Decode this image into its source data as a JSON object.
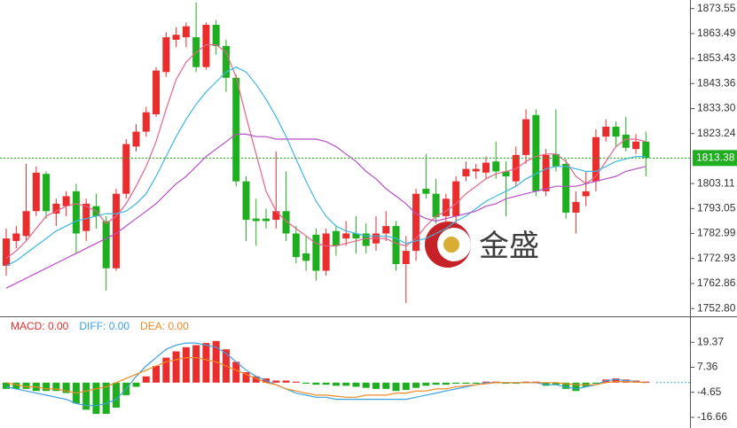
{
  "chart_data": [
    {
      "type": "candlestick",
      "up_color": "#eb2c2c",
      "down_color": "#1fae1f",
      "open": [
        1770,
        1780,
        1782,
        1792,
        1807,
        1791,
        1794,
        1800,
        1784,
        1794,
        1788,
        1769,
        1799,
        1818,
        1824,
        1831,
        1848,
        1861,
        1862,
        1862,
        1850,
        1867,
        1858.5,
        1845.7,
        1804,
        1789,
        1789,
        1788.5,
        1792,
        1783,
        1775,
        1782.5,
        1768,
        1784,
        1781,
        1783,
        1783,
        1779,
        1783,
        1786,
        1770.7,
        1776,
        1801,
        1799,
        1790,
        1790,
        1806,
        1808,
        1807.5,
        1812,
        1808,
        1804,
        1814.6,
        1830.7,
        1800,
        1815,
        1811,
        1791.4,
        1798,
        1804,
        1822,
        1826,
        1822.8,
        1817,
        1820
      ],
      "high": [
        1785,
        1786,
        1811,
        1810,
        1808,
        1797,
        1800,
        1803,
        1797,
        1799,
        1790,
        1801,
        1821,
        1827,
        1834,
        1850,
        1864,
        1866,
        1868,
        1876,
        1868,
        1869,
        1861,
        1847,
        1806,
        1797,
        1793,
        1816,
        1808,
        1786,
        1782,
        1785,
        1785,
        1786,
        1788,
        1790,
        1787,
        1790,
        1792,
        1788,
        1782,
        1801,
        1815,
        1805,
        1799,
        1806,
        1812,
        1811,
        1814,
        1820,
        1812,
        1818,
        1833,
        1833,
        1817,
        1833,
        1813,
        1800,
        1808,
        1825,
        1829,
        1828,
        1830,
        1823,
        1824
      ],
      "low": [
        1766,
        1777,
        1780,
        1790,
        1789,
        1786,
        1790,
        1775,
        1780,
        1785,
        1760,
        1768,
        1797,
        1816,
        1822,
        1830,
        1846,
        1858,
        1858,
        1848,
        1849,
        1855,
        1840,
        1802,
        1780,
        1778,
        1785,
        1785,
        1780,
        1771,
        1768,
        1764,
        1766,
        1774,
        1778,
        1775,
        1775,
        1776,
        1780,
        1768,
        1755,
        1772,
        1797,
        1787,
        1787,
        1787,
        1804,
        1805,
        1805,
        1805,
        1790,
        1802,
        1811,
        1798,
        1798,
        1808,
        1789,
        1783,
        1794,
        1800,
        1820,
        1818,
        1816,
        1815,
        1806
      ],
      "close": [
        1781,
        1783,
        1792,
        1807.5,
        1792,
        1795,
        1798,
        1783,
        1795,
        1790,
        1769,
        1799,
        1819,
        1824,
        1831.8,
        1848.6,
        1862,
        1863,
        1866.4,
        1850,
        1867,
        1858.5,
        1845.7,
        1804,
        1788.5,
        1788,
        1788,
        1792,
        1783,
        1773.5,
        1772,
        1768,
        1783,
        1778,
        1783,
        1781,
        1778,
        1783,
        1786,
        1770.7,
        1776,
        1799,
        1799,
        1789.6,
        1797,
        1804,
        1809,
        1809,
        1811.5,
        1808,
        1806,
        1814.6,
        1829,
        1800,
        1814.6,
        1810,
        1791.4,
        1795.7,
        1800,
        1821.8,
        1826,
        1822,
        1817.5,
        1820,
        1813.4
      ],
      "lines": [
        {
          "color": "#e8628a",
          "values": [
            1773,
            1776,
            1780,
            1785,
            1790,
            1792,
            1794,
            1795,
            1794,
            1792,
            1787,
            1790,
            1795,
            1802,
            1810,
            1820,
            1833,
            1845,
            1852,
            1856,
            1859,
            1859,
            1856,
            1846,
            1830,
            1815,
            1800,
            1792,
            1788,
            1785,
            1782,
            1779,
            1778,
            1778,
            1779,
            1780,
            1781,
            1781,
            1781,
            1779,
            1778,
            1781,
            1786,
            1790,
            1792,
            1795,
            1799,
            1802,
            1805,
            1807,
            1808,
            1809,
            1812,
            1814,
            1815,
            1815,
            1812,
            1806,
            1803,
            1806,
            1812,
            1818,
            1821,
            1821,
            1820
          ]
        },
        {
          "color": "#3cb8e0",
          "values": [
            1770,
            1772,
            1775,
            1778,
            1781,
            1784,
            1786,
            1788,
            1789,
            1790,
            1791,
            1791,
            1792,
            1795,
            1799,
            1806,
            1814,
            1822,
            1829,
            1835,
            1840,
            1844,
            1848,
            1850,
            1848,
            1843,
            1837,
            1830,
            1822,
            1813,
            1804,
            1796,
            1790,
            1786,
            1784,
            1783,
            1782,
            1782,
            1782,
            1781,
            1779,
            1780,
            1781,
            1783,
            1785,
            1788,
            1790,
            1793,
            1796,
            1798,
            1800,
            1802,
            1805,
            1807,
            1809,
            1810,
            1810,
            1809,
            1808,
            1808,
            1810,
            1812,
            1813,
            1814,
            1814
          ]
        },
        {
          "color": "#b84ec8",
          "values": [
            1761,
            1763,
            1765,
            1767,
            1769,
            1771,
            1773,
            1775,
            1777,
            1779,
            1781,
            1783,
            1786,
            1789,
            1792,
            1795,
            1799,
            1803,
            1806,
            1810,
            1814,
            1817,
            1820,
            1823,
            1823,
            1822,
            1822,
            1821,
            1821,
            1821,
            1821,
            1821,
            1820,
            1818,
            1815,
            1812,
            1808,
            1805,
            1801,
            1798,
            1795,
            1791,
            1789,
            1788,
            1789,
            1790,
            1791,
            1792,
            1794,
            1795,
            1797,
            1798,
            1799,
            1800,
            1801,
            1802,
            1802,
            1802,
            1803,
            1804,
            1805,
            1806,
            1808,
            1809,
            1810
          ]
        }
      ],
      "current_price": 1813.38,
      "current_color": "#1fae1f",
      "ylim": [
        1750,
        1877
      ],
      "yticks": [
        1873.55,
        1863.49,
        1853.43,
        1843.36,
        {
          "value": 1833.3,
          "label": "1833.30"
        },
        1823.24,
        1803.11,
        1793.05,
        1782.99,
        1772.93,
        1762.86,
        {
          "value": 1752.8,
          "label": "1752.80"
        }
      ],
      "watermark": "金盛"
    },
    {
      "type": "macd",
      "series": [
        {
          "legend": "MACD: 0.00",
          "color": "#eb2c2c",
          "down_color": "#1fae1f",
          "values": [
            -3,
            -3,
            -3,
            -4,
            -4,
            -4,
            -5,
            -10,
            -13,
            -15,
            -15,
            -12,
            -6,
            -2,
            3,
            8,
            12,
            15,
            17,
            18,
            19,
            20,
            16,
            10,
            5,
            3,
            2,
            1,
            1,
            0.5,
            -0.5,
            -1,
            -1,
            -1.5,
            -1.5,
            -2,
            -2.5,
            -3,
            -3,
            -4,
            -3.5,
            -2.5,
            -1.5,
            -1,
            -1,
            -0.5,
            -0.5,
            -0.5,
            0.5,
            0.5,
            -0.5,
            -0.5,
            0.5,
            0.5,
            -1.5,
            -1,
            -3,
            -4,
            -2,
            -0.5,
            1.5,
            2,
            1.5,
            1,
            0.5
          ]
        },
        {
          "legend": "DIFF: 0.00",
          "color": "#3ca0e0",
          "values": [
            -2,
            -3,
            -4,
            -5,
            -6,
            -7,
            -8,
            -10,
            -11,
            -11,
            -10,
            -8,
            -3,
            3,
            8,
            12,
            16,
            18,
            19,
            19,
            18,
            17,
            14,
            10,
            6,
            3,
            1,
            -1,
            -3,
            -5,
            -6,
            -7,
            -7,
            -8,
            -8,
            -8,
            -8,
            -8,
            -8,
            -8,
            -8,
            -7,
            -6,
            -5,
            -4,
            -3,
            -2,
            -1,
            0,
            0,
            0,
            0,
            0,
            0,
            -1,
            -1,
            -2,
            -3,
            -2,
            -1,
            1,
            1.5,
            1,
            0.5,
            0
          ]
        },
        {
          "legend": "DEA: 0.00",
          "color": "#f08a24",
          "values": [
            0,
            -1,
            -2,
            -2,
            -3,
            -3,
            -4,
            -5,
            -4,
            -3,
            -2,
            0,
            2,
            4,
            6,
            8,
            10,
            11,
            12,
            12,
            11,
            10,
            8,
            6,
            4,
            2,
            0,
            -1,
            -3,
            -4,
            -5,
            -6,
            -6,
            -6.5,
            -7,
            -7,
            -6,
            -6,
            -6,
            -5,
            -5,
            -4,
            -4,
            -3,
            -3,
            -2,
            -1.5,
            -1,
            -0.5,
            0,
            0,
            0,
            0,
            0,
            0,
            0,
            -0.5,
            -1,
            -1,
            -1,
            0,
            0.5,
            0.5,
            0.3,
            0
          ]
        }
      ],
      "ylim": [
        -20.5,
        31.4
      ],
      "yticks": [
        19.37,
        7.36,
        -4.65,
        -16.66
      ]
    }
  ]
}
